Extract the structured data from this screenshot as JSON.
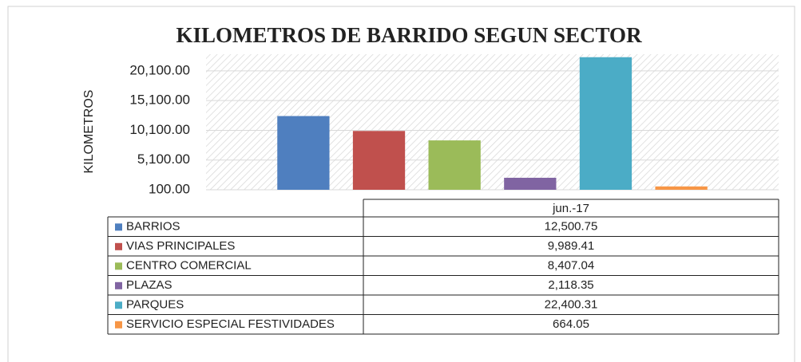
{
  "chart_data": {
    "type": "bar",
    "title": "KILOMETROS DE BARRIDO SEGUN SECTOR",
    "y_label": "KILOMETROS",
    "categories": [
      "jun.-17"
    ],
    "series": [
      {
        "name": "BARRIOS",
        "color": "#4f7fbf",
        "values": [
          12500.75
        ],
        "value_labels": [
          "12,500.75"
        ]
      },
      {
        "name": "VIAS PRINCIPALES",
        "color": "#c0504d",
        "values": [
          9989.41
        ],
        "value_labels": [
          "9,989.41"
        ]
      },
      {
        "name": "CENTRO COMERCIAL",
        "color": "#9bbb59",
        "values": [
          8407.04
        ],
        "value_labels": [
          "8,407.04"
        ]
      },
      {
        "name": "PLAZAS",
        "color": "#8064a2",
        "values": [
          2118.35
        ],
        "value_labels": [
          "2,118.35"
        ]
      },
      {
        "name": "PARQUES",
        "color": "#4bacc6",
        "values": [
          22400.31
        ],
        "value_labels": [
          "22,400.31"
        ]
      },
      {
        "name": "SERVICIO ESPECIAL FESTIVIDADES",
        "color": "#f79646",
        "values": [
          664.05
        ],
        "value_labels": [
          "664.05"
        ]
      }
    ],
    "ylim": [
      100,
      22900
    ],
    "yticks": [
      {
        "value": 100,
        "label": "100.00"
      },
      {
        "value": 5100,
        "label": "5,100.00"
      },
      {
        "value": 10100,
        "label": "10,100.00"
      },
      {
        "value": 15100,
        "label": "15,100.00"
      },
      {
        "value": 20100,
        "label": "20,100.00"
      }
    ],
    "grid": true,
    "data_table": true
  }
}
